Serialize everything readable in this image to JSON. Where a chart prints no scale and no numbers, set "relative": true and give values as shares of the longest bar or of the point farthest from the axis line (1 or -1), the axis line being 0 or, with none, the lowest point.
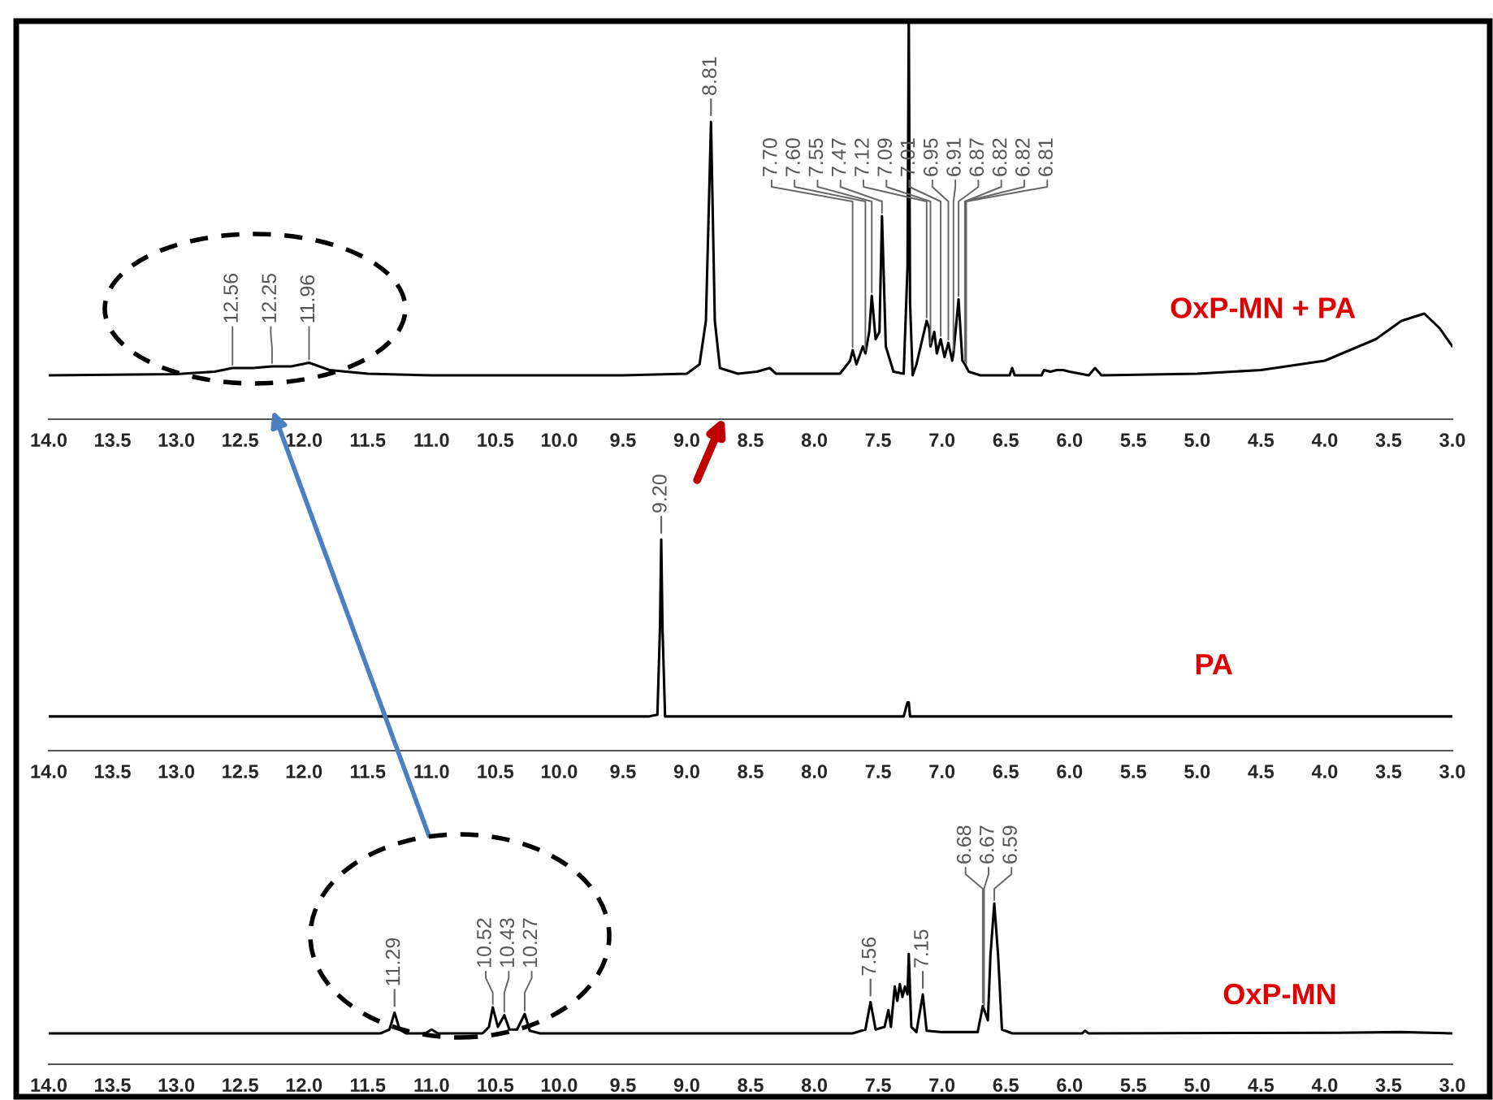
{
  "chart_data": [
    {
      "type": "line",
      "relative": true,
      "tick_labels": "x",
      "xlim": [
        14.0,
        3.0
      ],
      "xticks": [
        {
          "value": 14,
          "label": "14.0"
        },
        {
          "value": 13.5,
          "label": "13.5"
        },
        {
          "value": 13,
          "label": "13.0"
        },
        {
          "value": 12.5,
          "label": "12.5"
        },
        {
          "value": 12,
          "label": "12.0"
        },
        {
          "value": 11.5,
          "label": "11.5"
        },
        {
          "value": 11,
          "label": "11.0"
        },
        {
          "value": 10.5,
          "label": "10.5"
        },
        {
          "value": 10,
          "label": "10.0"
        },
        {
          "value": 9.5,
          "label": "9.5"
        },
        {
          "value": 9,
          "label": "9.0"
        },
        {
          "value": 8.5,
          "label": "8.5"
        },
        {
          "value": 8,
          "label": "8.0"
        },
        {
          "value": 7.5,
          "label": "7.5"
        },
        {
          "value": 7,
          "label": "7.0"
        },
        {
          "value": 6.5,
          "label": "6.5"
        },
        {
          "value": 6,
          "label": "6.0"
        },
        {
          "value": 5.5,
          "label": "5.5"
        },
        {
          "value": 5,
          "label": "5.0"
        },
        {
          "value": 4.5,
          "label": "4.5"
        },
        {
          "value": 4,
          "label": "4.0"
        },
        {
          "value": 3.5,
          "label": "3.5"
        },
        {
          "value": 3,
          "label": "3.0"
        }
      ],
      "series": [
        {
          "name": "OxP-MN + PA",
          "color": "#000000",
          "x": [
            14.0,
            13.0,
            12.7,
            12.56,
            12.4,
            12.25,
            12.1,
            11.96,
            11.8,
            11.5,
            11.0,
            9.5,
            9.0,
            8.9,
            8.85,
            8.81,
            8.78,
            8.74,
            8.6,
            8.45,
            8.35,
            8.3,
            7.8,
            7.72,
            7.7,
            7.67,
            7.62,
            7.6,
            7.57,
            7.55,
            7.52,
            7.49,
            7.47,
            7.44,
            7.38,
            7.3,
            7.27,
            7.26,
            7.25,
            7.23,
            7.2,
            7.12,
            7.1,
            7.09,
            7.06,
            7.04,
            7.01,
            6.98,
            6.95,
            6.92,
            6.91,
            6.87,
            6.84,
            6.82,
            6.79,
            6.7,
            6.47,
            6.45,
            6.43,
            6.22,
            6.2,
            6.15,
            6.1,
            6.05,
            6.0,
            5.85,
            5.8,
            5.75,
            5.0,
            4.5,
            4.0,
            3.6,
            3.4,
            3.22,
            3.1,
            3.0
          ],
          "values": [
            0.108,
            0.111,
            0.117,
            0.126,
            0.126,
            0.13,
            0.13,
            0.139,
            0.121,
            0.112,
            0.108,
            0.108,
            0.112,
            0.135,
            0.242,
            0.732,
            0.242,
            0.126,
            0.112,
            0.117,
            0.126,
            0.112,
            0.112,
            0.144,
            0.17,
            0.135,
            0.179,
            0.162,
            0.215,
            0.304,
            0.197,
            0.215,
            0.5,
            0.179,
            0.117,
            0.112,
            0.376,
            1.0,
            0.286,
            0.108,
            0.135,
            0.242,
            0.224,
            0.179,
            0.215,
            0.162,
            0.197,
            0.153,
            0.188,
            0.144,
            0.162,
            0.295,
            0.144,
            0.135,
            0.117,
            0.108,
            0.108,
            0.126,
            0.108,
            0.108,
            0.121,
            0.117,
            0.121,
            0.121,
            0.117,
            0.108,
            0.126,
            0.108,
            0.112,
            0.121,
            0.144,
            0.197,
            0.242,
            0.26,
            0.224,
            0.179
          ]
        }
      ],
      "annotations": [
        {
          "text": "12.56",
          "x": 12.56,
          "y": 0.126
        },
        {
          "text": "12.25",
          "x": 12.25,
          "y": 0.13
        },
        {
          "text": "11.96",
          "x": 11.96,
          "y": 0.139
        },
        {
          "text": "8.81",
          "x": 8.81,
          "y": 0.732
        },
        {
          "text": "7.70",
          "x": 7.7,
          "y": 0.17
        },
        {
          "text": "7.60",
          "x": 7.6,
          "y": 0.162
        },
        {
          "text": "7.55",
          "x": 7.55,
          "y": 0.304
        },
        {
          "text": "7.47",
          "x": 7.47,
          "y": 0.5
        },
        {
          "text": "7.12",
          "x": 7.12,
          "y": 0.242
        },
        {
          "text": "7.09",
          "x": 7.09,
          "y": 0.179
        },
        {
          "text": "7.01",
          "x": 7.01,
          "y": 0.197
        },
        {
          "text": "6.95",
          "x": 6.95,
          "y": 0.188
        },
        {
          "text": "6.91",
          "x": 6.91,
          "y": 0.162
        },
        {
          "text": "6.87",
          "x": 6.87,
          "y": 0.295
        },
        {
          "text": "6.82",
          "x": 6.82,
          "y": 0.135
        },
        {
          "text": "6.82",
          "x": 6.82,
          "y": 0.135
        },
        {
          "text": "6.81",
          "x": 6.81,
          "y": 0.13
        }
      ]
    },
    {
      "type": "line",
      "relative": true,
      "tick_labels": "x",
      "xlim": [
        14.0,
        3.0
      ],
      "xticks": [
        {
          "value": 14,
          "label": "14.0"
        },
        {
          "value": 13.5,
          "label": "13.5"
        },
        {
          "value": 13,
          "label": "13.0"
        },
        {
          "value": 12.5,
          "label": "12.5"
        },
        {
          "value": 12,
          "label": "12.0"
        },
        {
          "value": 11.5,
          "label": "11.5"
        },
        {
          "value": 11,
          "label": "11.0"
        },
        {
          "value": 10.5,
          "label": "10.5"
        },
        {
          "value": 10,
          "label": "10.0"
        },
        {
          "value": 9.5,
          "label": "9.5"
        },
        {
          "value": 9,
          "label": "9.0"
        },
        {
          "value": 8.5,
          "label": "8.5"
        },
        {
          "value": 8,
          "label": "8.0"
        },
        {
          "value": 7.5,
          "label": "7.5"
        },
        {
          "value": 7,
          "label": "7.0"
        },
        {
          "value": 6.5,
          "label": "6.5"
        },
        {
          "value": 6,
          "label": "6.0"
        },
        {
          "value": 5.5,
          "label": "5.5"
        },
        {
          "value": 5,
          "label": "5.0"
        },
        {
          "value": 4.5,
          "label": "4.5"
        },
        {
          "value": 4,
          "label": "4.0"
        },
        {
          "value": 3.5,
          "label": "3.5"
        },
        {
          "value": 3,
          "label": "3.0"
        }
      ],
      "series": [
        {
          "name": "PA",
          "color": "#000000",
          "x": [
            14.0,
            9.3,
            9.23,
            9.21,
            9.2,
            9.19,
            9.17,
            7.3,
            7.27,
            7.26,
            7.25,
            3.0
          ],
          "values": [
            0.162,
            0.162,
            0.17,
            0.581,
            1.0,
            0.581,
            0.162,
            0.162,
            0.229,
            0.229,
            0.162,
            0.162
          ]
        }
      ],
      "annotations": [
        {
          "text": "9.20",
          "x": 9.2,
          "y": 1.0
        }
      ]
    },
    {
      "type": "line",
      "relative": true,
      "tick_labels": "x",
      "xlim": [
        14.0,
        3.0
      ],
      "xticks": [
        {
          "value": 14,
          "label": "14.0"
        },
        {
          "value": 13.5,
          "label": "13.5"
        },
        {
          "value": 13,
          "label": "13.0"
        },
        {
          "value": 12.5,
          "label": "12.5"
        },
        {
          "value": 12,
          "label": "12.0"
        },
        {
          "value": 11.5,
          "label": "11.5"
        },
        {
          "value": 11,
          "label": "11.0"
        },
        {
          "value": 10.5,
          "label": "10.5"
        },
        {
          "value": 10,
          "label": "10.0"
        },
        {
          "value": 9.5,
          "label": "9.5"
        },
        {
          "value": 9,
          "label": "9.0"
        },
        {
          "value": 8.5,
          "label": "8.5"
        },
        {
          "value": 8,
          "label": "8.0"
        },
        {
          "value": 7.5,
          "label": "7.5"
        },
        {
          "value": 7,
          "label": "7.0"
        },
        {
          "value": 6.5,
          "label": "6.5"
        },
        {
          "value": 6,
          "label": "6.0"
        },
        {
          "value": 5.5,
          "label": "5.5"
        },
        {
          "value": 5,
          "label": "5.0"
        },
        {
          "value": 4.5,
          "label": "4.5"
        },
        {
          "value": 4,
          "label": "4.0"
        },
        {
          "value": 3.5,
          "label": "3.5"
        },
        {
          "value": 3,
          "label": "3.0"
        }
      ],
      "series": [
        {
          "name": "OxP-MN",
          "color": "#000000",
          "x": [
            14.0,
            11.4,
            11.33,
            11.29,
            11.25,
            11.2,
            11.05,
            11.0,
            10.95,
            10.6,
            10.55,
            10.52,
            10.48,
            10.43,
            10.39,
            10.33,
            10.27,
            10.23,
            10.15,
            7.7,
            7.6,
            7.56,
            7.52,
            7.45,
            7.42,
            7.4,
            7.37,
            7.35,
            7.33,
            7.31,
            7.29,
            7.27,
            7.26,
            7.24,
            7.2,
            7.15,
            7.12,
            7.0,
            6.72,
            6.68,
            6.64,
            6.62,
            6.59,
            6.56,
            6.53,
            6.45,
            5.9,
            5.88,
            5.85,
            3.9,
            3.4,
            3.0
          ],
          "values": [
            0.192,
            0.192,
            0.216,
            0.321,
            0.216,
            0.192,
            0.192,
            0.216,
            0.192,
            0.192,
            0.232,
            0.354,
            0.232,
            0.305,
            0.216,
            0.216,
            0.313,
            0.208,
            0.192,
            0.192,
            0.216,
            0.386,
            0.216,
            0.232,
            0.337,
            0.232,
            0.483,
            0.394,
            0.499,
            0.418,
            0.483,
            0.434,
            0.685,
            0.232,
            0.2,
            0.434,
            0.208,
            0.2,
            0.2,
            0.362,
            0.273,
            0.677,
            1.0,
            0.677,
            0.216,
            0.192,
            0.192,
            0.208,
            0.192,
            0.196,
            0.2,
            0.192
          ]
        }
      ],
      "annotations": [
        {
          "text": "11.29",
          "x": 11.29,
          "y": 0.321
        },
        {
          "text": "10.52",
          "x": 10.52,
          "y": 0.354
        },
        {
          "text": "10.43",
          "x": 10.43,
          "y": 0.305
        },
        {
          "text": "10.27",
          "x": 10.27,
          "y": 0.313
        },
        {
          "text": "7.56",
          "x": 7.56,
          "y": 0.386
        },
        {
          "text": "7.15",
          "x": 7.15,
          "y": 0.434
        },
        {
          "text": "6.68",
          "x": 6.68,
          "y": 0.362
        },
        {
          "text": "6.67",
          "x": 6.67,
          "y": 0.34
        },
        {
          "text": "6.59",
          "x": 6.59,
          "y": 1.0
        }
      ]
    }
  ]
}
